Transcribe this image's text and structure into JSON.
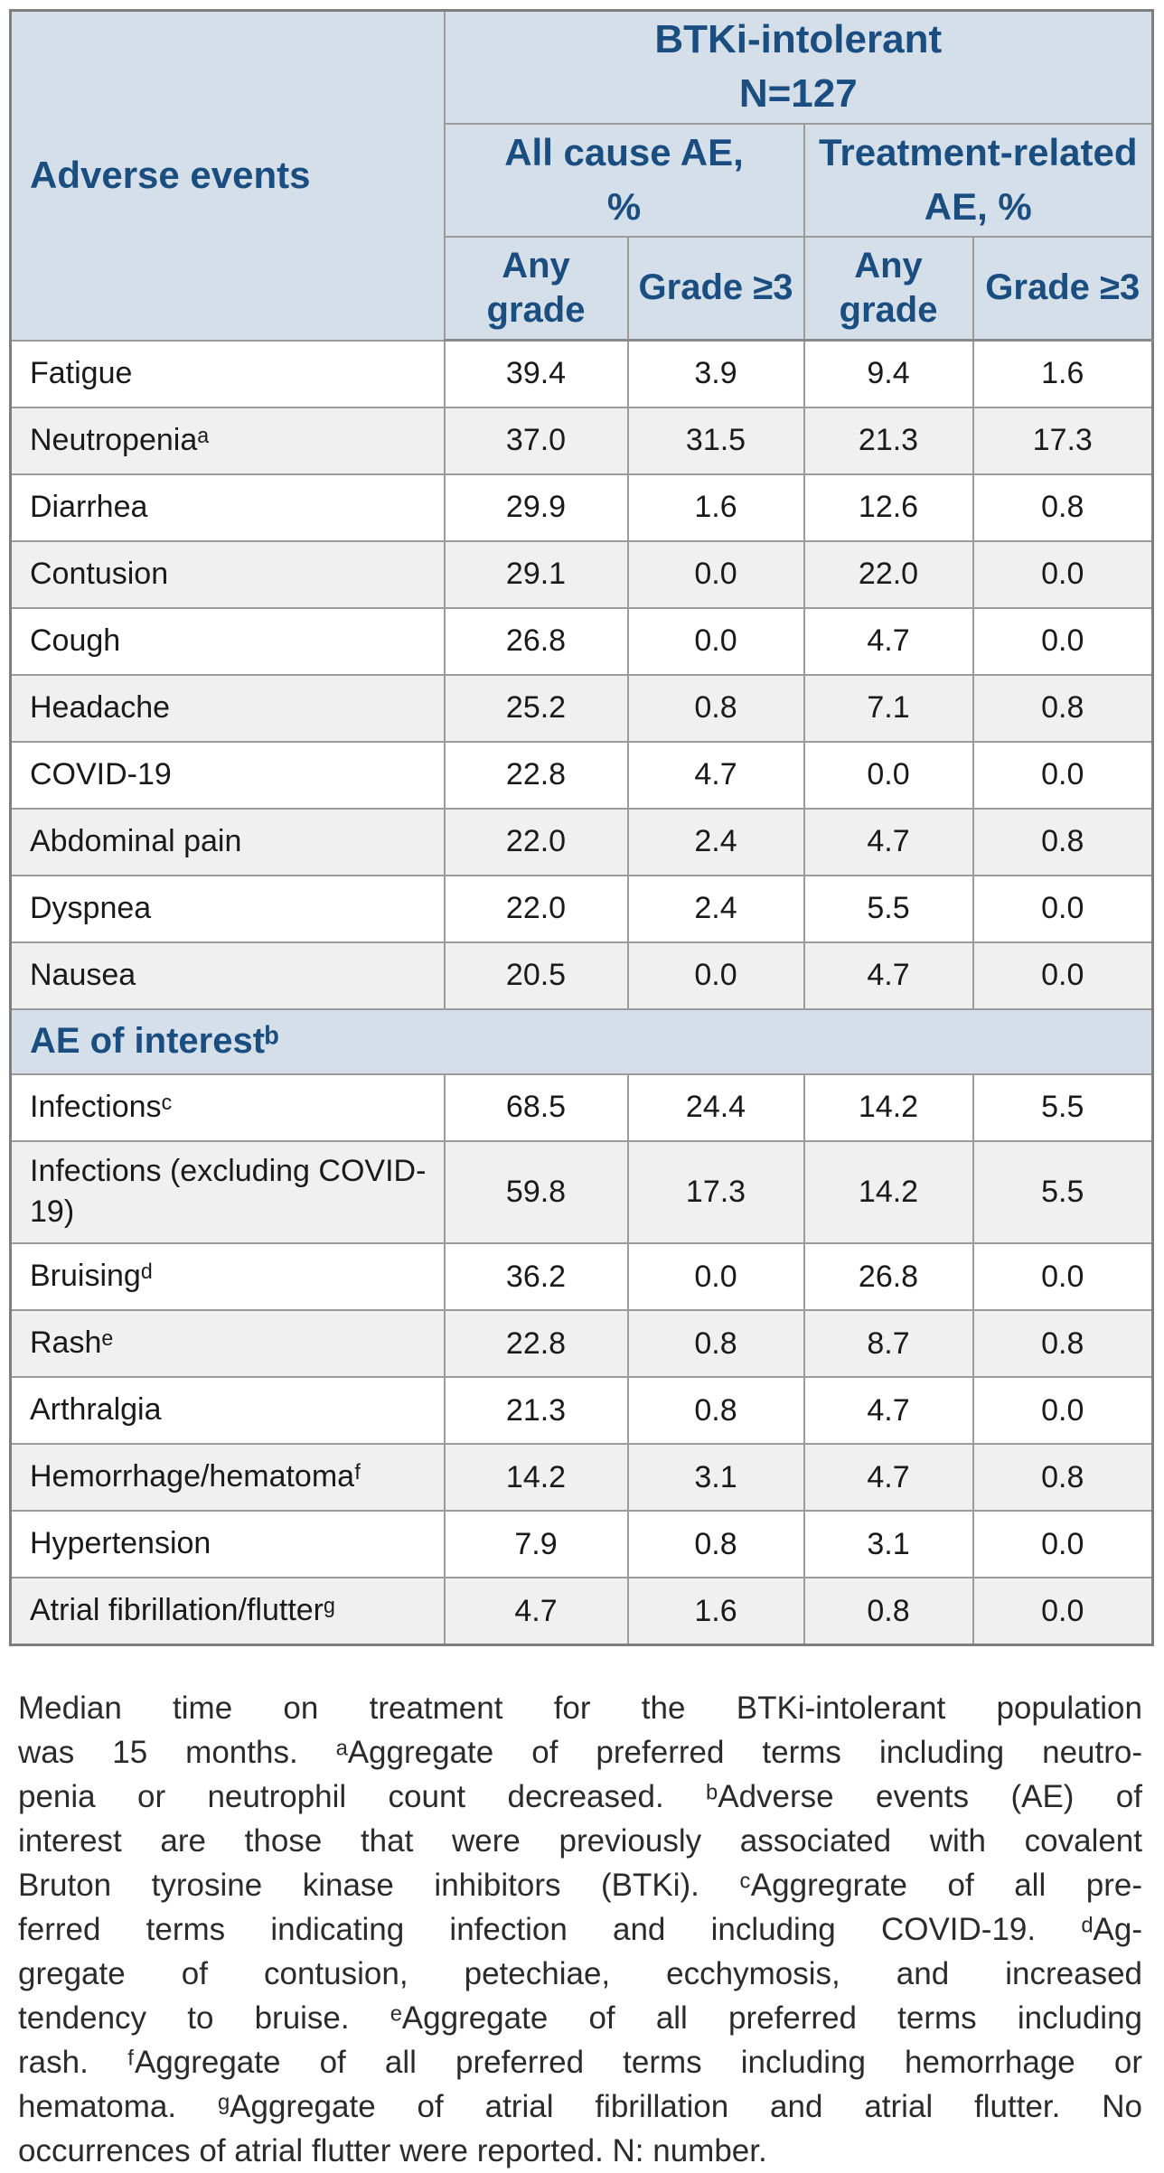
{
  "colors": {
    "header_bg": "#D4DFE9",
    "accent_navy": "#1B4E80",
    "row_alt_bg": "#F0F0F0",
    "border_gray": "#9B9B9B",
    "body_text": "#1A1A1A"
  },
  "table": {
    "left_header": "Adverse events",
    "population": {
      "line1": "BTKi-intolerant",
      "line2": "N=127"
    },
    "groups": [
      {
        "line1": "All cause AE,",
        "line2": "%"
      },
      {
        "line1": "Treatment-related",
        "line2": "AE, %"
      }
    ],
    "grade_headers": [
      {
        "line1": "Any",
        "line2": "grade"
      },
      {
        "line1": "Grade ≥3",
        "line2": ""
      },
      {
        "line1": "Any",
        "line2": "grade"
      },
      {
        "line1": "Grade ≥3",
        "line2": ""
      }
    ],
    "rows_top": [
      {
        "label": "Fatigue",
        "values": [
          "39.4",
          "3.9",
          "9.4",
          "1.6"
        ]
      },
      {
        "label": "Neutropeniaᵃ",
        "values": [
          "37.0",
          "31.5",
          "21.3",
          "17.3"
        ]
      },
      {
        "label": "Diarrhea",
        "values": [
          "29.9",
          "1.6",
          "12.6",
          "0.8"
        ]
      },
      {
        "label": "Contusion",
        "values": [
          "29.1",
          "0.0",
          "22.0",
          "0.0"
        ]
      },
      {
        "label": "Cough",
        "values": [
          "26.8",
          "0.0",
          "4.7",
          "0.0"
        ]
      },
      {
        "label": "Headache",
        "values": [
          "25.2",
          "0.8",
          "7.1",
          "0.8"
        ]
      },
      {
        "label": "COVID-19",
        "values": [
          "22.8",
          "4.7",
          "0.0",
          "0.0"
        ]
      },
      {
        "label": "Abdominal pain",
        "values": [
          "22.0",
          "2.4",
          "4.7",
          "0.8"
        ]
      },
      {
        "label": "Dyspnea",
        "values": [
          "22.0",
          "2.4",
          "5.5",
          "0.0"
        ]
      },
      {
        "label": "Nausea",
        "values": [
          "20.5",
          "0.0",
          "4.7",
          "0.0"
        ]
      }
    ],
    "section_header": "AE of interestᵇ",
    "rows_interest": [
      {
        "label": "Infectionsᶜ",
        "values": [
          "68.5",
          "24.4",
          "14.2",
          "5.5"
        ]
      },
      {
        "label": "Infections (excluding COVID-19)",
        "values": [
          "59.8",
          "17.3",
          "14.2",
          "5.5"
        ]
      },
      {
        "label": "Bruisingᵈ",
        "values": [
          "36.2",
          "0.0",
          "26.8",
          "0.0"
        ]
      },
      {
        "label": "Rashᵉ",
        "values": [
          "22.8",
          "0.8",
          "8.7",
          "0.8"
        ]
      },
      {
        "label": "Arthralgia",
        "values": [
          "21.3",
          "0.8",
          "4.7",
          "0.0"
        ]
      },
      {
        "label": "Hemorrhage/hematomaᶠ",
        "values": [
          "14.2",
          "3.1",
          "4.7",
          "0.8"
        ]
      },
      {
        "label": "Hypertension",
        "values": [
          "7.9",
          "0.8",
          "3.1",
          "0.0"
        ]
      },
      {
        "label": "Atrial fibrillation/flutterᵍ",
        "values": [
          "4.7",
          "1.6",
          "0.8",
          "0.0"
        ]
      }
    ]
  },
  "footer": {
    "lines": [
      "Median time on treatment for the BTKi-intolerant population",
      "was 15 months. ᵃAggregate of preferred terms including neutro-",
      "penia or neutrophil count decreased. ᵇAdverse events (AE) of",
      "interest are those that were previously associated with covalent",
      "Bruton tyrosine kinase inhibitors (BTKi). ᶜAggregrate of all pre-",
      "ferred terms indicating infection and including COVID-19. ᵈAg-",
      "gregate of contusion, petechiae, ecchymosis, and increased",
      "tendency to bruise. ᵉAggregate of all preferred terms including",
      "rash. ᶠAggregate of all preferred terms including hemorrhage or",
      "hematoma. ᵍAggregate of atrial fibrillation and atrial flutter. No",
      "occurrences of atrial flutter were reported. N: number."
    ]
  }
}
